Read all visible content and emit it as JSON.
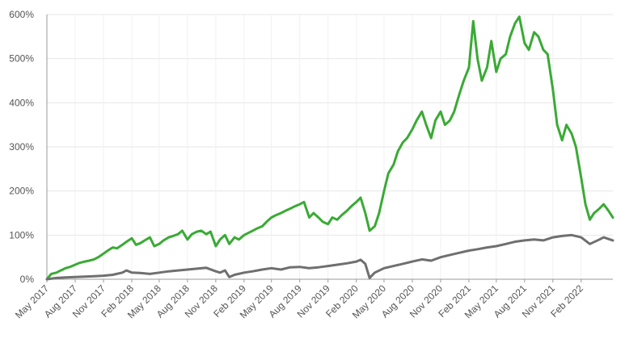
{
  "chart_data": {
    "type": "line",
    "title": "",
    "xlabel": "",
    "ylabel": "",
    "y_unit": "%",
    "ylim": [
      0,
      600
    ],
    "y_ticks": [
      {
        "value": 0,
        "label": "0%"
      },
      {
        "value": 100,
        "label": "100%"
      },
      {
        "value": 200,
        "label": "200%"
      },
      {
        "value": 300,
        "label": "300%"
      },
      {
        "value": 400,
        "label": "400%"
      },
      {
        "value": 500,
        "label": "500%"
      },
      {
        "value": 600,
        "label": "600%"
      }
    ],
    "x_range": [
      "2017-05-01",
      "2022-05-15"
    ],
    "x_ticks": [
      {
        "date": "2017-05-01",
        "label": "May 2017"
      },
      {
        "date": "2017-08-01",
        "label": "Aug 2017"
      },
      {
        "date": "2017-11-01",
        "label": "Nov 2017"
      },
      {
        "date": "2018-02-01",
        "label": "Feb 2018"
      },
      {
        "date": "2018-05-01",
        "label": "May 2018"
      },
      {
        "date": "2018-08-01",
        "label": "Aug 2018"
      },
      {
        "date": "2018-11-01",
        "label": "Nov 2018"
      },
      {
        "date": "2019-02-01",
        "label": "Feb 2019"
      },
      {
        "date": "2019-05-01",
        "label": "May 2019"
      },
      {
        "date": "2019-08-01",
        "label": "Aug 2019"
      },
      {
        "date": "2019-11-01",
        "label": "Nov 2019"
      },
      {
        "date": "2020-02-01",
        "label": "Feb 2020"
      },
      {
        "date": "2020-05-01",
        "label": "May 2020"
      },
      {
        "date": "2020-08-01",
        "label": "Aug 2020"
      },
      {
        "date": "2020-11-01",
        "label": "Nov 2020"
      },
      {
        "date": "2021-02-01",
        "label": "Feb 2021"
      },
      {
        "date": "2021-05-01",
        "label": "May 2021"
      },
      {
        "date": "2021-08-01",
        "label": "Aug 2021"
      },
      {
        "date": "2021-11-01",
        "label": "Nov 2021"
      },
      {
        "date": "2022-02-01",
        "label": "Feb 2022"
      }
    ],
    "grid": true,
    "legend": "none",
    "series": [
      {
        "color": "#3aaa35",
        "points": [
          [
            "2017-05-01",
            0
          ],
          [
            "2017-05-15",
            12
          ],
          [
            "2017-06-01",
            15
          ],
          [
            "2017-06-15",
            20
          ],
          [
            "2017-07-01",
            25
          ],
          [
            "2017-07-15",
            28
          ],
          [
            "2017-08-01",
            33
          ],
          [
            "2017-08-15",
            37
          ],
          [
            "2017-09-01",
            40
          ],
          [
            "2017-09-15",
            42
          ],
          [
            "2017-10-01",
            45
          ],
          [
            "2017-10-15",
            50
          ],
          [
            "2017-11-01",
            58
          ],
          [
            "2017-11-15",
            65
          ],
          [
            "2017-12-01",
            72
          ],
          [
            "2017-12-15",
            70
          ],
          [
            "2018-01-01",
            78
          ],
          [
            "2018-01-15",
            85
          ],
          [
            "2018-02-01",
            93
          ],
          [
            "2018-02-15",
            78
          ],
          [
            "2018-03-01",
            82
          ],
          [
            "2018-03-15",
            88
          ],
          [
            "2018-04-01",
            95
          ],
          [
            "2018-04-15",
            75
          ],
          [
            "2018-05-01",
            80
          ],
          [
            "2018-05-15",
            88
          ],
          [
            "2018-06-01",
            95
          ],
          [
            "2018-06-15",
            98
          ],
          [
            "2018-07-01",
            102
          ],
          [
            "2018-07-15",
            110
          ],
          [
            "2018-08-01",
            90
          ],
          [
            "2018-08-15",
            102
          ],
          [
            "2018-09-01",
            108
          ],
          [
            "2018-09-15",
            110
          ],
          [
            "2018-10-01",
            102
          ],
          [
            "2018-10-15",
            108
          ],
          [
            "2018-11-01",
            75
          ],
          [
            "2018-11-15",
            90
          ],
          [
            "2018-12-01",
            100
          ],
          [
            "2018-12-15",
            80
          ],
          [
            "2019-01-01",
            95
          ],
          [
            "2019-01-15",
            90
          ],
          [
            "2019-02-01",
            100
          ],
          [
            "2019-02-15",
            105
          ],
          [
            "2019-03-01",
            110
          ],
          [
            "2019-03-15",
            115
          ],
          [
            "2019-04-01",
            120
          ],
          [
            "2019-04-15",
            130
          ],
          [
            "2019-05-01",
            140
          ],
          [
            "2019-05-15",
            145
          ],
          [
            "2019-06-01",
            150
          ],
          [
            "2019-06-15",
            155
          ],
          [
            "2019-07-01",
            160
          ],
          [
            "2019-07-15",
            165
          ],
          [
            "2019-08-01",
            170
          ],
          [
            "2019-08-15",
            175
          ],
          [
            "2019-09-01",
            140
          ],
          [
            "2019-09-15",
            150
          ],
          [
            "2019-10-01",
            140
          ],
          [
            "2019-10-15",
            130
          ],
          [
            "2019-11-01",
            125
          ],
          [
            "2019-11-15",
            140
          ],
          [
            "2019-12-01",
            135
          ],
          [
            "2019-12-15",
            145
          ],
          [
            "2020-01-01",
            155
          ],
          [
            "2020-01-15",
            165
          ],
          [
            "2020-02-01",
            175
          ],
          [
            "2020-02-15",
            185
          ],
          [
            "2020-03-01",
            150
          ],
          [
            "2020-03-15",
            110
          ],
          [
            "2020-04-01",
            120
          ],
          [
            "2020-04-15",
            150
          ],
          [
            "2020-05-01",
            200
          ],
          [
            "2020-05-15",
            240
          ],
          [
            "2020-06-01",
            260
          ],
          [
            "2020-06-15",
            290
          ],
          [
            "2020-07-01",
            310
          ],
          [
            "2020-07-15",
            320
          ],
          [
            "2020-08-01",
            340
          ],
          [
            "2020-08-15",
            360
          ],
          [
            "2020-09-01",
            380
          ],
          [
            "2020-09-15",
            350
          ],
          [
            "2020-10-01",
            320
          ],
          [
            "2020-10-15",
            360
          ],
          [
            "2020-11-01",
            380
          ],
          [
            "2020-11-15",
            350
          ],
          [
            "2020-12-01",
            360
          ],
          [
            "2020-12-15",
            380
          ],
          [
            "2021-01-01",
            420
          ],
          [
            "2021-01-15",
            450
          ],
          [
            "2021-02-01",
            480
          ],
          [
            "2021-02-15",
            585
          ],
          [
            "2021-03-01",
            500
          ],
          [
            "2021-03-15",
            450
          ],
          [
            "2021-04-01",
            480
          ],
          [
            "2021-04-15",
            540
          ],
          [
            "2021-05-01",
            470
          ],
          [
            "2021-05-15",
            500
          ],
          [
            "2021-06-01",
            510
          ],
          [
            "2021-06-15",
            550
          ],
          [
            "2021-07-01",
            580
          ],
          [
            "2021-07-15",
            595
          ],
          [
            "2021-08-01",
            535
          ],
          [
            "2021-08-15",
            520
          ],
          [
            "2021-09-01",
            560
          ],
          [
            "2021-09-15",
            550
          ],
          [
            "2021-10-01",
            520
          ],
          [
            "2021-10-15",
            510
          ],
          [
            "2021-11-01",
            430
          ],
          [
            "2021-11-15",
            350
          ],
          [
            "2021-12-01",
            315
          ],
          [
            "2021-12-15",
            350
          ],
          [
            "2022-01-01",
            330
          ],
          [
            "2022-01-15",
            300
          ],
          [
            "2022-02-01",
            230
          ],
          [
            "2022-02-15",
            170
          ],
          [
            "2022-03-01",
            135
          ],
          [
            "2022-03-15",
            150
          ],
          [
            "2022-04-01",
            160
          ],
          [
            "2022-04-15",
            170
          ],
          [
            "2022-05-01",
            155
          ],
          [
            "2022-05-15",
            140
          ]
        ]
      },
      {
        "color": "#6f6f6f",
        "points": [
          [
            "2017-05-01",
            0
          ],
          [
            "2017-06-01",
            3
          ],
          [
            "2017-07-01",
            4
          ],
          [
            "2017-08-01",
            5
          ],
          [
            "2017-09-01",
            6
          ],
          [
            "2017-10-01",
            7
          ],
          [
            "2017-11-01",
            8
          ],
          [
            "2017-12-01",
            10
          ],
          [
            "2018-01-01",
            15
          ],
          [
            "2018-01-15",
            20
          ],
          [
            "2018-02-01",
            15
          ],
          [
            "2018-03-01",
            14
          ],
          [
            "2018-04-01",
            12
          ],
          [
            "2018-05-01",
            15
          ],
          [
            "2018-06-01",
            18
          ],
          [
            "2018-07-01",
            20
          ],
          [
            "2018-08-01",
            22
          ],
          [
            "2018-09-01",
            24
          ],
          [
            "2018-10-01",
            26
          ],
          [
            "2018-11-01",
            18
          ],
          [
            "2018-11-15",
            15
          ],
          [
            "2018-12-01",
            20
          ],
          [
            "2018-12-15",
            5
          ],
          [
            "2019-01-01",
            10
          ],
          [
            "2019-02-01",
            15
          ],
          [
            "2019-03-01",
            18
          ],
          [
            "2019-04-01",
            22
          ],
          [
            "2019-05-01",
            25
          ],
          [
            "2019-06-01",
            22
          ],
          [
            "2019-07-01",
            27
          ],
          [
            "2019-08-01",
            28
          ],
          [
            "2019-09-01",
            25
          ],
          [
            "2019-10-01",
            27
          ],
          [
            "2019-11-01",
            30
          ],
          [
            "2019-12-01",
            33
          ],
          [
            "2020-01-01",
            36
          ],
          [
            "2020-02-01",
            40
          ],
          [
            "2020-02-15",
            44
          ],
          [
            "2020-03-01",
            35
          ],
          [
            "2020-03-15",
            3
          ],
          [
            "2020-04-01",
            15
          ],
          [
            "2020-05-01",
            25
          ],
          [
            "2020-06-01",
            30
          ],
          [
            "2020-07-01",
            35
          ],
          [
            "2020-08-01",
            40
          ],
          [
            "2020-09-01",
            45
          ],
          [
            "2020-10-01",
            42
          ],
          [
            "2020-11-01",
            50
          ],
          [
            "2020-12-01",
            55
          ],
          [
            "2021-01-01",
            60
          ],
          [
            "2021-02-01",
            65
          ],
          [
            "2021-03-01",
            68
          ],
          [
            "2021-04-01",
            72
          ],
          [
            "2021-05-01",
            75
          ],
          [
            "2021-06-01",
            80
          ],
          [
            "2021-07-01",
            85
          ],
          [
            "2021-08-01",
            88
          ],
          [
            "2021-09-01",
            90
          ],
          [
            "2021-10-01",
            88
          ],
          [
            "2021-11-01",
            95
          ],
          [
            "2021-12-01",
            98
          ],
          [
            "2022-01-01",
            100
          ],
          [
            "2022-02-01",
            95
          ],
          [
            "2022-03-01",
            80
          ],
          [
            "2022-04-01",
            90
          ],
          [
            "2022-04-15",
            95
          ],
          [
            "2022-05-15",
            88
          ]
        ]
      }
    ]
  }
}
